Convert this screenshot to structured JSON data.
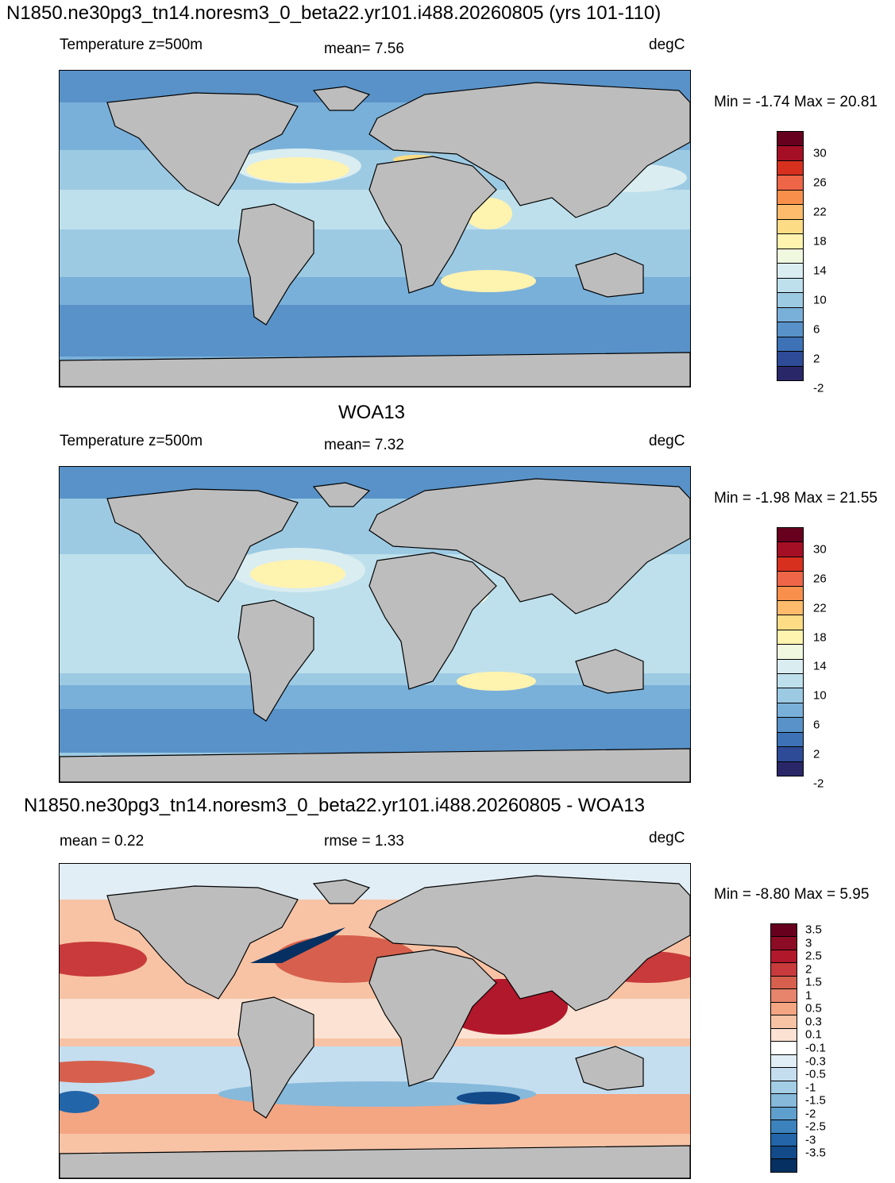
{
  "panel1": {
    "title": "N1850.ne30pg3_tn14.noresm3_0_beta22.yr101.i488.20260805 (yrs 101-110)",
    "left_label": "Temperature z=500m",
    "center_label": "mean=   7.56",
    "unit": "degC",
    "minmax": "Min =  -1.74 Max =  20.81"
  },
  "panel2": {
    "title": "WOA13",
    "left_label": "Temperature z=500m",
    "center_label": "mean=   7.32",
    "unit": "degC",
    "minmax": "Min =  -1.98 Max =  21.55"
  },
  "panel3": {
    "title": "N1850.ne30pg3_tn14.noresm3_0_beta22.yr101.i488.20260805 - WOA13",
    "left_label": "mean =   0.22",
    "center_label": "rmse =   1.33",
    "unit": "degC",
    "minmax": "Min =  -8.80 Max =   5.95"
  },
  "temp_colorbar": {
    "tick_labels": [
      "30",
      "26",
      "22",
      "18",
      "14",
      "10",
      "6",
      "2",
      "-2"
    ],
    "colors_top_to_bottom": [
      "#67001f",
      "#a50f26",
      "#d7301f",
      "#ef6548",
      "#f8904c",
      "#fdbb6b",
      "#fddc86",
      "#fff3b0",
      "#f0f8e0",
      "#daedf0",
      "#bee0ec",
      "#9dcae3",
      "#79b0d9",
      "#5892c8",
      "#3d72b6",
      "#2e4b97",
      "#2a2768"
    ]
  },
  "diff_colorbar": {
    "tick_labels": [
      "3.5",
      "3",
      "2.5",
      "2",
      "1.5",
      "1",
      "0.5",
      "0.3",
      "0.1",
      "-0.1",
      "-0.3",
      "-0.5",
      "-1",
      "-1.5",
      "-2",
      "-2.5",
      "-3",
      "-3.5"
    ],
    "colors_top_to_bottom": [
      "#67001f",
      "#8c0c25",
      "#b2182b",
      "#c83a3c",
      "#d6604d",
      "#e6846c",
      "#f4a582",
      "#f8c3a5",
      "#fbe2d2",
      "#ffffff",
      "#e1eef5",
      "#c4def0",
      "#a3cde5",
      "#86b9da",
      "#5f9fce",
      "#3c82bc",
      "#2265a8",
      "#124a8a",
      "#053061"
    ]
  }
}
